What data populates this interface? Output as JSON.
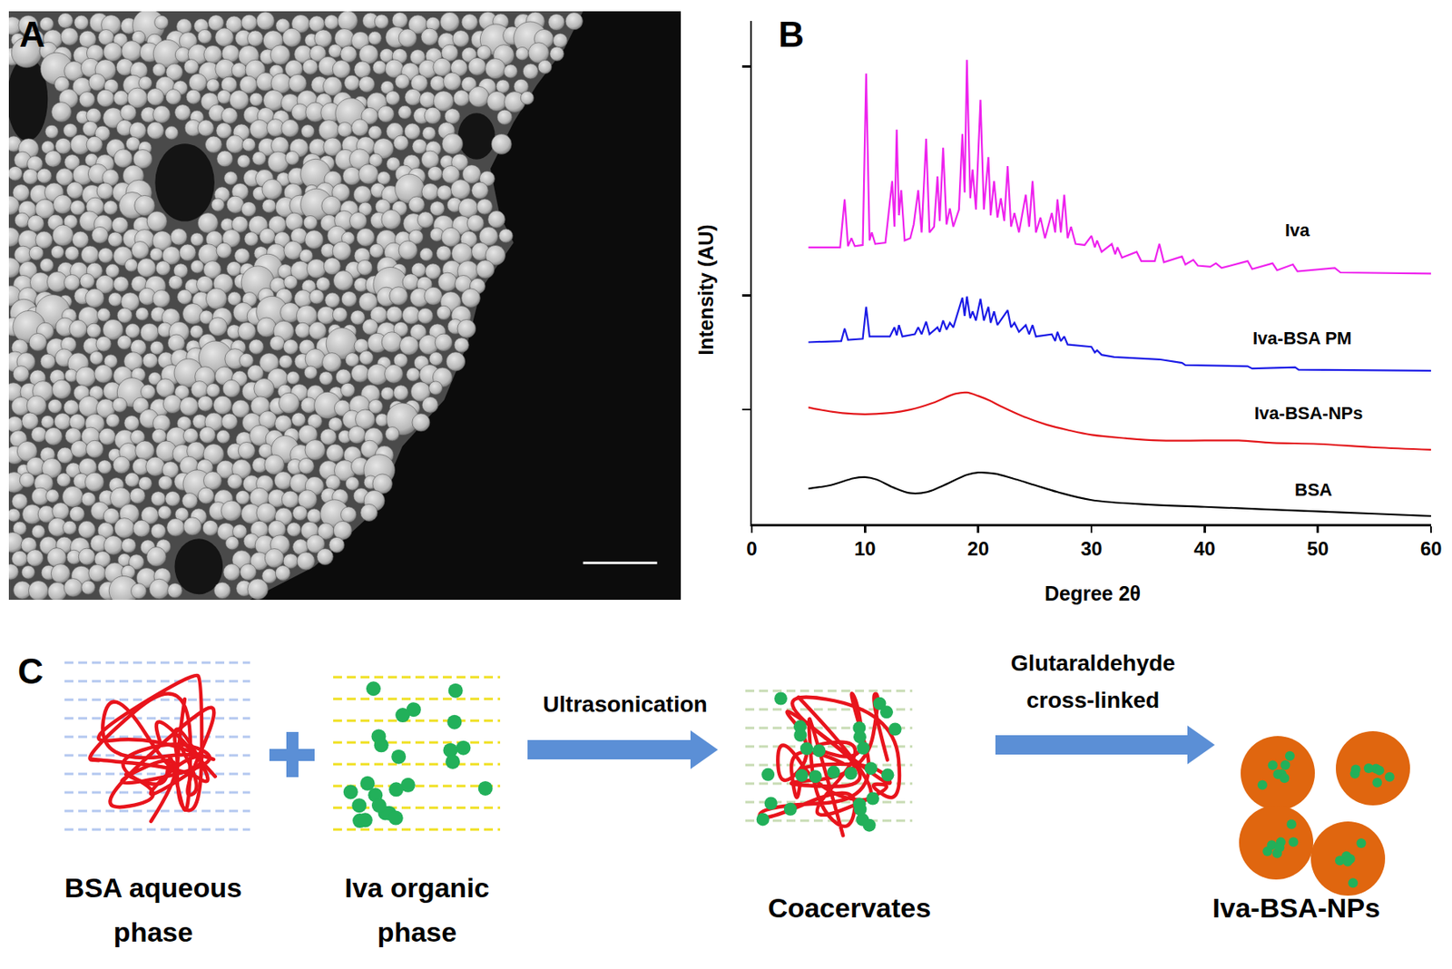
{
  "panel_a": {
    "label": "A"
  },
  "chart_data": {
    "panel_label": "B",
    "type": "line",
    "x_label": "Degree 2θ",
    "y_label": "Intensity (AU)",
    "xlim": [
      0,
      60
    ],
    "xticks": [
      0,
      10,
      20,
      30,
      40,
      50,
      60
    ],
    "ylim": [
      0,
      4.4
    ],
    "yticks": [
      1,
      2,
      4
    ],
    "tick_labels": "x",
    "grid": false,
    "series": [
      {
        "name": "Iva",
        "color": "#ee22ee",
        "line_style": "linear",
        "x": [
          5,
          7.8,
          8.2,
          8.5,
          8.8,
          9.1,
          9.8,
          10.1,
          10.4,
          10.6,
          10.9,
          11.8,
          12.4,
          12.6,
          12.8,
          13.0,
          13.2,
          13.5,
          14.0,
          14.3,
          14.7,
          15.0,
          15.4,
          15.7,
          16.1,
          16.4,
          16.6,
          16.9,
          17.2,
          17.5,
          17.8,
          18.3,
          18.6,
          18.8,
          19.0,
          19.3,
          19.5,
          19.8,
          20.2,
          20.5,
          20.9,
          21.1,
          21.4,
          21.7,
          22.0,
          22.3,
          22.6,
          22.9,
          23.2,
          23.6,
          24.2,
          24.5,
          24.8,
          25.1,
          25.5,
          25.9,
          26.5,
          26.8,
          27.0,
          27.3,
          27.6,
          27.9,
          28.2,
          28.6,
          29.4,
          30.0,
          30.3,
          30.5,
          30.9,
          31.8,
          32.1,
          32.3,
          32.7,
          34.0,
          34.4,
          35.6,
          36.0,
          36.4,
          38.0,
          38.3,
          39.0,
          39.4,
          40.5,
          41.0,
          41.5,
          43.8,
          44.2,
          46.0,
          46.4,
          47.8,
          48.2,
          51.5,
          52.0,
          60
        ],
        "values": [
          2.42,
          2.42,
          2.84,
          2.43,
          2.5,
          2.43,
          2.44,
          3.94,
          2.48,
          2.55,
          2.45,
          2.46,
          3.0,
          2.6,
          3.45,
          2.7,
          2.92,
          2.48,
          2.5,
          2.62,
          2.92,
          2.55,
          3.37,
          2.55,
          2.6,
          3.04,
          2.65,
          3.29,
          2.62,
          2.76,
          2.6,
          2.75,
          3.41,
          2.9,
          4.06,
          2.85,
          3.1,
          2.75,
          3.71,
          2.75,
          3.21,
          2.7,
          3.0,
          2.68,
          2.85,
          2.65,
          3.13,
          2.6,
          2.72,
          2.55,
          2.88,
          2.6,
          3.0,
          2.55,
          2.68,
          2.5,
          2.72,
          2.55,
          2.84,
          2.55,
          2.88,
          2.5,
          2.6,
          2.45,
          2.44,
          2.52,
          2.42,
          2.48,
          2.38,
          2.45,
          2.36,
          2.42,
          2.33,
          2.38,
          2.3,
          2.3,
          2.45,
          2.29,
          2.34,
          2.27,
          2.31,
          2.26,
          2.25,
          2.28,
          2.24,
          2.3,
          2.23,
          2.28,
          2.22,
          2.27,
          2.21,
          2.24,
          2.2,
          2.19
        ]
      },
      {
        "name": "Iva-BSA PM",
        "color": "#1a1ae6",
        "line_style": "linear",
        "x": [
          5,
          7.9,
          8.2,
          8.5,
          9.8,
          10.1,
          10.4,
          12.2,
          12.6,
          12.8,
          13.0,
          13.3,
          14.4,
          14.7,
          15.0,
          15.4,
          15.7,
          16.4,
          16.6,
          16.9,
          17.2,
          17.5,
          17.8,
          18.6,
          18.8,
          19.0,
          19.3,
          19.5,
          19.8,
          20.2,
          20.5,
          20.9,
          21.1,
          21.4,
          21.7,
          22.6,
          22.9,
          23.2,
          23.6,
          24.2,
          24.5,
          24.8,
          25.1,
          26.5,
          26.8,
          27.0,
          27.3,
          27.6,
          27.9,
          30.0,
          30.3,
          30.5,
          30.9,
          32.0,
          36.0,
          38.0,
          38.3,
          43.8,
          44.2,
          48.0,
          48.3,
          60
        ],
        "values": [
          1.59,
          1.6,
          1.71,
          1.61,
          1.62,
          1.9,
          1.64,
          1.64,
          1.72,
          1.65,
          1.74,
          1.64,
          1.66,
          1.72,
          1.66,
          1.77,
          1.66,
          1.72,
          1.68,
          1.78,
          1.7,
          1.76,
          1.72,
          1.98,
          1.82,
          1.99,
          1.8,
          1.86,
          1.78,
          1.97,
          1.78,
          1.9,
          1.76,
          1.86,
          1.74,
          1.87,
          1.72,
          1.76,
          1.68,
          1.74,
          1.66,
          1.74,
          1.64,
          1.66,
          1.6,
          1.68,
          1.6,
          1.64,
          1.57,
          1.55,
          1.5,
          1.52,
          1.48,
          1.46,
          1.44,
          1.41,
          1.39,
          1.38,
          1.36,
          1.37,
          1.35,
          1.34
        ]
      },
      {
        "name": "Iva-BSA-NPs",
        "color": "#e3161a",
        "line_style": "smooth",
        "x": [
          5,
          6,
          8,
          10,
          12,
          14,
          16,
          18,
          19,
          20,
          21,
          22,
          24,
          26,
          28,
          30,
          33,
          36,
          40,
          43,
          46,
          50,
          55,
          60
        ],
        "values": [
          1.02,
          1.0,
          0.97,
          0.96,
          0.97,
          1.0,
          1.06,
          1.14,
          1.15,
          1.12,
          1.08,
          1.03,
          0.94,
          0.87,
          0.82,
          0.78,
          0.75,
          0.73,
          0.73,
          0.73,
          0.71,
          0.7,
          0.67,
          0.65
        ]
      },
      {
        "name": "BSA",
        "color": "#000000",
        "line_style": "smooth",
        "x": [
          5,
          7,
          9,
          10,
          11,
          12.5,
          14,
          15.5,
          17,
          19,
          20,
          21.5,
          23,
          25,
          27,
          30,
          35,
          40,
          45,
          50,
          55,
          60
        ],
        "values": [
          0.31,
          0.34,
          0.4,
          0.41,
          0.39,
          0.32,
          0.27,
          0.28,
          0.34,
          0.43,
          0.45,
          0.44,
          0.4,
          0.34,
          0.28,
          0.21,
          0.17,
          0.15,
          0.13,
          0.11,
          0.09,
          0.07
        ]
      }
    ]
  },
  "panel_c": {
    "label": "C",
    "steps": [
      {
        "label": [
          "BSA aqueous",
          "phase"
        ]
      },
      {
        "label": [
          "Iva organic",
          "phase"
        ]
      },
      {
        "label": [
          "Coacervates"
        ]
      },
      {
        "label": [
          "Iva-BSA-NPs"
        ]
      }
    ],
    "arrows": [
      {
        "label": [
          "Ultrasonication"
        ]
      },
      {
        "label": [
          "Glutaraldehyde",
          "cross-linked"
        ]
      }
    ]
  }
}
